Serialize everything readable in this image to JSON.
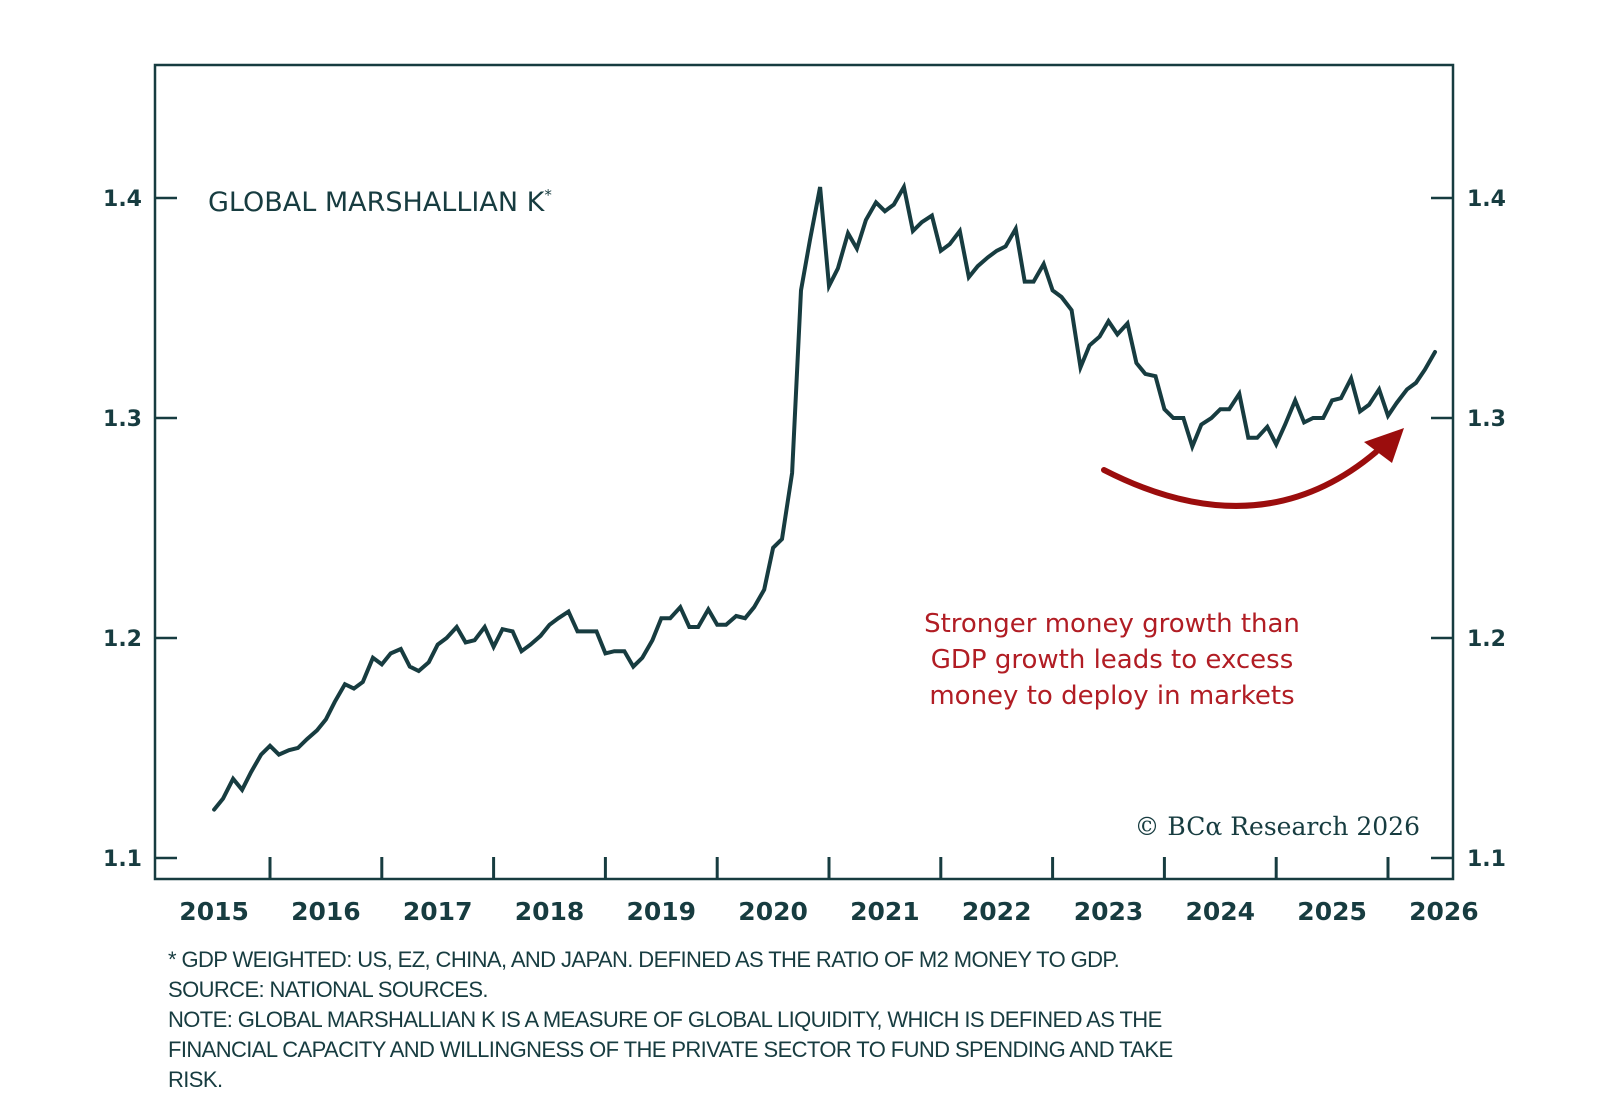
{
  "chart_data": {
    "type": "line",
    "title": "GLOBAL MARSHALLIAN K",
    "title_marker": "*",
    "xlabel": "",
    "ylabel": "",
    "ylim": [
      1.1,
      1.4
    ],
    "y_ticks": [
      1.1,
      1.2,
      1.3,
      1.4
    ],
    "y_tick_labels": [
      "1.1",
      "1.2",
      "1.3",
      "1.4"
    ],
    "y_axis_sides": [
      "left",
      "right"
    ],
    "xlim": [
      2014.5,
      2026.0
    ],
    "x_ticks": [
      2015.5,
      2016.5,
      2017.5,
      2018.5,
      2019.5,
      2020.5,
      2021.5,
      2022.5,
      2023.5,
      2024.5,
      2025.5
    ],
    "x_tick_labels": [
      "2015",
      "2016",
      "2017",
      "2018",
      "2019",
      "2020",
      "2021",
      "2022",
      "2023",
      "2024",
      "2025",
      "2026"
    ],
    "grid": false,
    "series": [
      {
        "name": "Global Marshallian K",
        "color": "#173c40",
        "x": [
          2015.0,
          2015.08,
          2015.17,
          2015.25,
          2015.33,
          2015.42,
          2015.5,
          2015.58,
          2015.67,
          2015.75,
          2015.83,
          2015.92,
          2016.0,
          2016.08,
          2016.17,
          2016.25,
          2016.33,
          2016.42,
          2016.5,
          2016.58,
          2016.67,
          2016.75,
          2016.83,
          2016.92,
          2017.0,
          2017.08,
          2017.17,
          2017.25,
          2017.33,
          2017.42,
          2017.5,
          2017.58,
          2017.67,
          2017.75,
          2017.83,
          2017.92,
          2018.0,
          2018.08,
          2018.17,
          2018.25,
          2018.33,
          2018.42,
          2018.5,
          2018.58,
          2018.67,
          2018.75,
          2018.83,
          2018.92,
          2019.0,
          2019.08,
          2019.17,
          2019.25,
          2019.33,
          2019.42,
          2019.5,
          2019.58,
          2019.67,
          2019.75,
          2019.83,
          2019.92,
          2020.0,
          2020.08,
          2020.17,
          2020.25,
          2020.33,
          2020.42,
          2020.5,
          2020.58,
          2020.67,
          2020.75,
          2020.83,
          2020.92,
          2021.0,
          2021.08,
          2021.17,
          2021.25,
          2021.33,
          2021.42,
          2021.5,
          2021.58,
          2021.67,
          2021.75,
          2021.83,
          2021.92,
          2022.0,
          2022.08,
          2022.17,
          2022.25,
          2022.33,
          2022.42,
          2022.5,
          2022.58,
          2022.67,
          2022.75,
          2022.83,
          2022.92,
          2023.0,
          2023.08,
          2023.17,
          2023.25,
          2023.33,
          2023.42,
          2023.5,
          2023.58,
          2023.67,
          2023.75,
          2023.83,
          2023.92,
          2024.0,
          2024.08,
          2024.17,
          2024.25,
          2024.33,
          2024.42,
          2024.5,
          2024.58,
          2024.67,
          2024.75,
          2024.83,
          2024.92,
          2025.0,
          2025.08,
          2025.17,
          2025.25,
          2025.33,
          2025.42,
          2025.5,
          2025.58,
          2025.67,
          2025.75,
          2025.83,
          2025.92
        ],
        "values": [
          1.122,
          1.127,
          1.136,
          1.131,
          1.139,
          1.147,
          1.151,
          1.147,
          1.149,
          1.15,
          1.154,
          1.158,
          1.163,
          1.171,
          1.179,
          1.177,
          1.18,
          1.191,
          1.188,
          1.193,
          1.195,
          1.187,
          1.185,
          1.189,
          1.197,
          1.2,
          1.205,
          1.198,
          1.199,
          1.205,
          1.196,
          1.204,
          1.203,
          1.194,
          1.197,
          1.201,
          1.206,
          1.209,
          1.212,
          1.203,
          1.203,
          1.203,
          1.193,
          1.194,
          1.194,
          1.187,
          1.191,
          1.199,
          1.209,
          1.209,
          1.214,
          1.205,
          1.205,
          1.213,
          1.206,
          1.206,
          1.21,
          1.209,
          1.214,
          1.222,
          1.241,
          1.245,
          1.275,
          1.358,
          1.381,
          1.405,
          1.36,
          1.368,
          1.384,
          1.377,
          1.39,
          1.398,
          1.394,
          1.397,
          1.405,
          1.385,
          1.389,
          1.392,
          1.376,
          1.379,
          1.385,
          1.364,
          1.369,
          1.373,
          1.376,
          1.378,
          1.386,
          1.362,
          1.362,
          1.37,
          1.358,
          1.355,
          1.349,
          1.323,
          1.333,
          1.337,
          1.344,
          1.338,
          1.343,
          1.325,
          1.32,
          1.319,
          1.304,
          1.3,
          1.3,
          1.287,
          1.297,
          1.3,
          1.304,
          1.304,
          1.311,
          1.291,
          1.291,
          1.296,
          1.288,
          1.297,
          1.308,
          1.298,
          1.3,
          1.3,
          1.308,
          1.309,
          1.318,
          1.303,
          1.306,
          1.313,
          1.301,
          1.307,
          1.313,
          1.316,
          1.322,
          1.33
        ]
      }
    ],
    "annotations": [
      {
        "text_lines": [
          "Stronger money growth than",
          "GDP growth leads to excess",
          "money to deploy in markets"
        ],
        "color": "#b11d24"
      },
      {
        "type": "arrow",
        "direction": "curved-up-right",
        "color": "#9b0d0d"
      }
    ],
    "legend": "none"
  },
  "copyright": "© BCα Research 2026",
  "footnotes": [
    "* GDP WEIGHTED: US, EZ, CHINA, AND JAPAN. DEFINED AS THE RATIO OF M2 MONEY TO GDP.",
    "SOURCE: NATIONAL SOURCES.",
    "NOTE: GLOBAL MARSHALLIAN K IS A MEASURE OF GLOBAL LIQUIDITY, WHICH IS DEFINED AS THE",
    "FINANCIAL CAPACITY AND WILLINGNESS OF THE PRIVATE SECTOR TO FUND SPENDING AND TAKE",
    "RISK."
  ]
}
